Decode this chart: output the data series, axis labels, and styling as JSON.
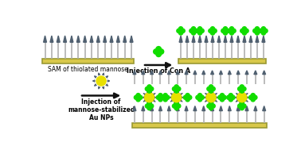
{
  "bg_color": "#ffffff",
  "needle_color": "#b0b0b0",
  "needle_tip_color": "#506070",
  "substrate_color": "#d8c84a",
  "substrate_edge": "#999933",
  "conA_color": "#11dd00",
  "nanoparticle_color": "#e8e000",
  "nanoparticle_edge": "#888800",
  "spike_color": "#506070",
  "arrow_color": "#111111",
  "text_color": "#000000",
  "panel1_label": "SAM of thiolated mannose",
  "arrow1_label": "Injection of Con A",
  "arrow2_label": "Injection of\nmannose-stabilized\nAu NPs"
}
